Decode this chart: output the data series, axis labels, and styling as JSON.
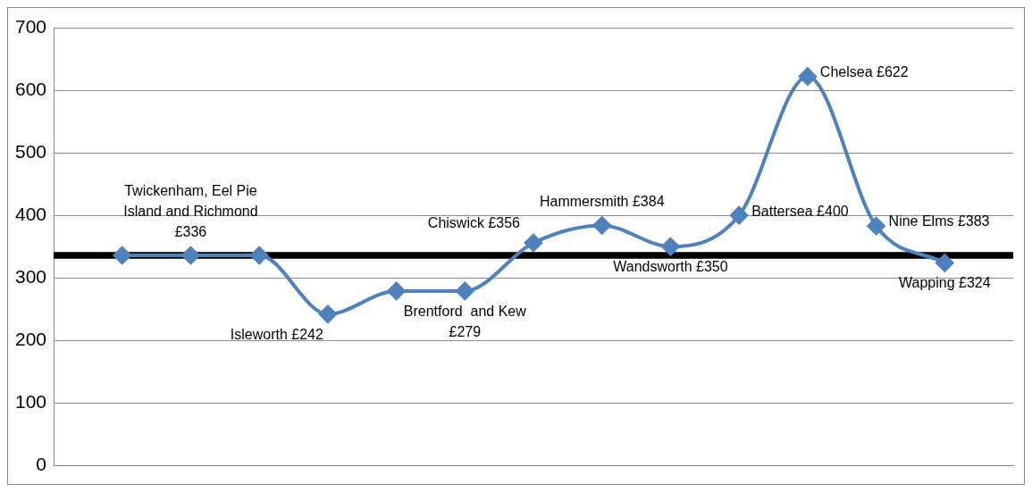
{
  "chart_data": {
    "type": "line",
    "categories": [
      null,
      null,
      null,
      null,
      null,
      null,
      null,
      null,
      null,
      null,
      null,
      null,
      null
    ],
    "series": [
      {
        "color": "#4f81bd",
        "values": [
          336,
          336,
          336,
          242,
          279,
          279,
          356,
          384,
          350,
          400,
          622,
          383,
          324
        ],
        "value_labels": [
          null,
          "Twickenham, Eel Pie Island and Richmond £336",
          null,
          "Isleworth £242",
          null,
          "Brentford  and Kew £279",
          "Chiswick £356",
          "Hammersmith £384",
          "Wandsworth £350",
          "Battersea £400",
          "Chelsea £622",
          "Nine Elms £383",
          "Wapping £324"
        ]
      }
    ],
    "ylim": [
      0,
      700
    ],
    "yticks": [
      0,
      100,
      200,
      300,
      400,
      500,
      600,
      700
    ],
    "grid": "y",
    "legend": false,
    "marker": "diamond",
    "line_style": "solid",
    "ref_lines": [
      {
        "axis": "y",
        "value": 336,
        "color": "#000000"
      }
    ]
  }
}
